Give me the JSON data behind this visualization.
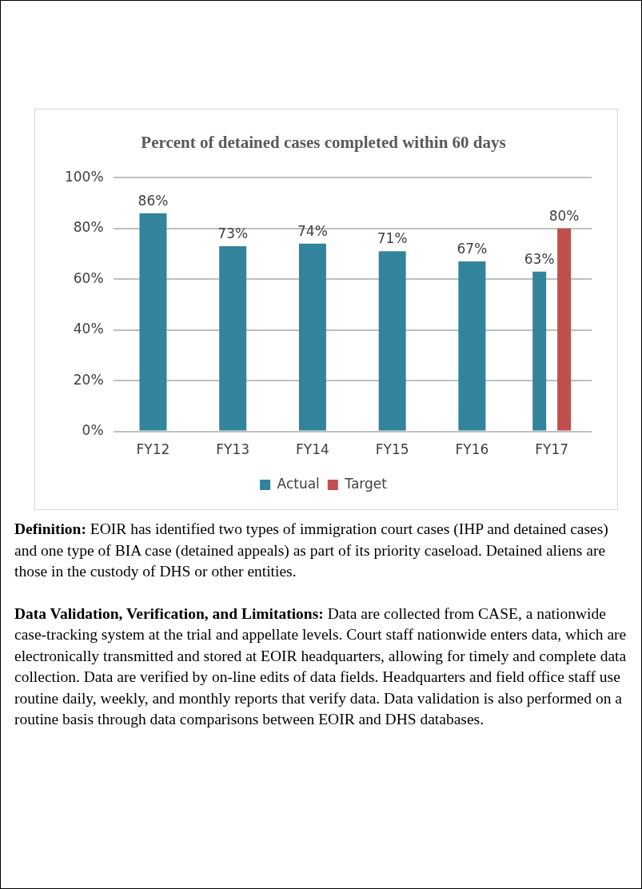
{
  "chart_data": {
    "type": "bar",
    "title": "Percent of detained cases completed within 60 days",
    "categories": [
      "FY12",
      "FY13",
      "FY14",
      "FY15",
      "FY16",
      "FY17"
    ],
    "series": [
      {
        "name": "Actual",
        "color": "#31849b",
        "values": [
          86,
          73,
          74,
          71,
          67,
          63
        ],
        "value_labels": [
          "86%",
          "73%",
          "74%",
          "71%",
          "67%",
          "63%"
        ]
      },
      {
        "name": "Target",
        "color": "#c0504d",
        "values": [
          null,
          null,
          null,
          null,
          null,
          80
        ],
        "value_labels": [
          null,
          null,
          null,
          null,
          null,
          "80%"
        ]
      }
    ],
    "ylim": [
      0,
      100
    ],
    "yticks": [
      {
        "value": 0,
        "label": "0%"
      },
      {
        "value": 20,
        "label": "20%"
      },
      {
        "value": 40,
        "label": "40%"
      },
      {
        "value": 60,
        "label": "60%"
      },
      {
        "value": 80,
        "label": "80%"
      },
      {
        "value": 100,
        "label": "100%"
      }
    ],
    "grid": "y",
    "legend": "bottom",
    "annotations": [
      "Definition:  EOIR has identified two types of immigration court cases (IHP and detained cases) and one type of BIA case (detained appeals) as part of its priority caseload.  Detained aliens are those in the custody of DHS or other entities.",
      "Data Validation, Verification, and Limitations:  Data are collected from CASE, a nationwide case-tracking system at the trial and appellate levels.  Court staff nationwide enters data, which are electronically transmitted and stored at EOIR headquarters, allowing for timely and complete data collection.  Data are verified by on-line edits of data fields.  Headquarters and field office staff use routine daily, weekly, and monthly reports that verify data.  Data validation is also performed on a routine basis through data comparisons between EOIR and DHS databases."
    ]
  }
}
